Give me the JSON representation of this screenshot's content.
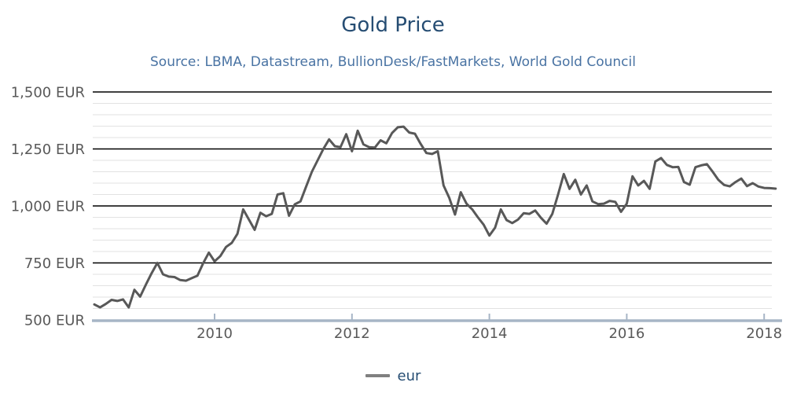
{
  "header": {
    "title": "Gold Price",
    "subtitle": "Source: LBMA, Datastream, BullionDesk/FastMarkets, World Gold Council"
  },
  "legend": {
    "series_label": "eur",
    "swatch_color": "#808080",
    "position": "bottom-center"
  },
  "colors": {
    "title": "#264d73",
    "subtitle": "#4973a3",
    "axis_labels": "#595959",
    "series_line": "#585858",
    "major_gridline": "#000000",
    "minor_gridline": "#e2e2e2",
    "baseline_axis": "#a7b5c6",
    "background": "#ffffff"
  },
  "chart_data": {
    "type": "line",
    "title": "Gold Price",
    "subtitle": "Source: LBMA, Datastream, BullionDesk/FastMarkets, World Gold Council",
    "xlabel": "",
    "ylabel": "",
    "xlim": [
      2008.2,
      2018.3
    ],
    "ylim": [
      500,
      1500
    ],
    "grid": {
      "minor_step": 50,
      "major_values": [
        750,
        1000,
        1250,
        1500
      ],
      "baseline_value": 500
    },
    "legend_position": "bottom",
    "y_ticks": {
      "values": [
        500,
        750,
        1000,
        1250,
        1500
      ],
      "labels": [
        "500 EUR",
        "750 EUR",
        "1,000 EUR",
        "1,250 EUR",
        "1,500 EUR"
      ]
    },
    "x_ticks": {
      "values": [
        2010,
        2012,
        2014,
        2016,
        2018
      ],
      "labels": [
        "2010",
        "2012",
        "2014",
        "2016",
        "2018"
      ]
    },
    "series": [
      {
        "name": "eur",
        "color": "#585858",
        "x": [
          2008.25,
          2008.333,
          2008.417,
          2008.5,
          2008.583,
          2008.667,
          2008.75,
          2008.833,
          2008.917,
          2009.0,
          2009.083,
          2009.167,
          2009.25,
          2009.333,
          2009.417,
          2009.5,
          2009.583,
          2009.667,
          2009.75,
          2009.833,
          2009.917,
          2010.0,
          2010.083,
          2010.167,
          2010.25,
          2010.333,
          2010.417,
          2010.5,
          2010.583,
          2010.667,
          2010.75,
          2010.833,
          2010.917,
          2011.0,
          2011.083,
          2011.167,
          2011.25,
          2011.333,
          2011.417,
          2011.5,
          2011.583,
          2011.667,
          2011.75,
          2011.833,
          2011.917,
          2012.0,
          2012.083,
          2012.167,
          2012.25,
          2012.333,
          2012.417,
          2012.5,
          2012.583,
          2012.667,
          2012.75,
          2012.833,
          2012.917,
          2013.0,
          2013.083,
          2013.167,
          2013.25,
          2013.333,
          2013.417,
          2013.5,
          2013.583,
          2013.667,
          2013.75,
          2013.833,
          2013.917,
          2014.0,
          2014.083,
          2014.167,
          2014.25,
          2014.333,
          2014.417,
          2014.5,
          2014.583,
          2014.667,
          2014.75,
          2014.833,
          2014.917,
          2015.0,
          2015.083,
          2015.167,
          2015.25,
          2015.333,
          2015.417,
          2015.5,
          2015.583,
          2015.667,
          2015.75,
          2015.833,
          2015.917,
          2016.0,
          2016.083,
          2016.167,
          2016.25,
          2016.333,
          2016.417,
          2016.5,
          2016.583,
          2016.667,
          2016.75,
          2016.833,
          2016.917,
          2017.0,
          2017.083,
          2017.167,
          2017.25,
          2017.333,
          2017.417,
          2017.5,
          2017.583,
          2017.667,
          2017.75,
          2017.833,
          2017.917,
          2018.0,
          2018.083,
          2018.167
        ],
        "values": [
          568,
          555,
          570,
          588,
          583,
          590,
          555,
          632,
          602,
          655,
          705,
          750,
          700,
          690,
          688,
          675,
          672,
          683,
          694,
          748,
          795,
          757,
          780,
          820,
          838,
          878,
          985,
          940,
          895,
          970,
          955,
          965,
          1050,
          1056,
          957,
          1007,
          1020,
          1085,
          1150,
          1200,
          1250,
          1292,
          1262,
          1258,
          1315,
          1240,
          1330,
          1270,
          1258,
          1256,
          1288,
          1275,
          1320,
          1345,
          1348,
          1322,
          1317,
          1272,
          1232,
          1228,
          1240,
          1090,
          1035,
          962,
          1060,
          1010,
          985,
          950,
          918,
          870,
          905,
          985,
          938,
          925,
          940,
          968,
          965,
          980,
          948,
          922,
          965,
          1050,
          1140,
          1075,
          1115,
          1050,
          1090,
          1020,
          1008,
          1010,
          1022,
          1018,
          974,
          1010,
          1130,
          1090,
          1110,
          1075,
          1195,
          1210,
          1180,
          1170,
          1171,
          1105,
          1093,
          1170,
          1178,
          1183,
          1150,
          1115,
          1092,
          1086,
          1105,
          1120,
          1087,
          1100,
          1085,
          1079,
          1078,
          1076
        ]
      }
    ]
  }
}
